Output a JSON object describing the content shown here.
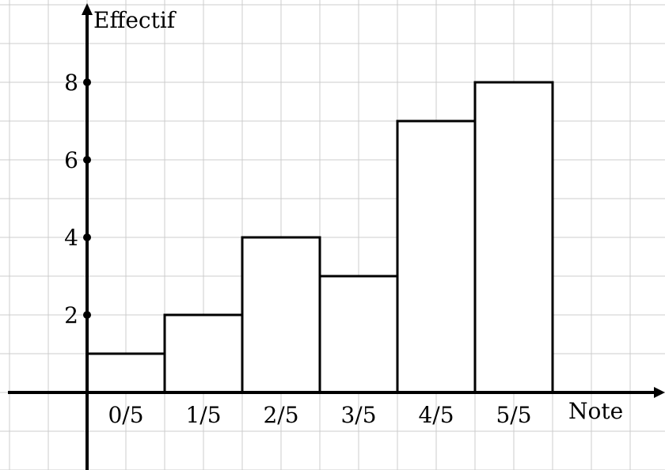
{
  "chart_data": {
    "type": "bar",
    "categories": [
      "0/5",
      "1/5",
      "2/5",
      "3/5",
      "4/5",
      "5/5"
    ],
    "values": [
      1,
      2,
      4,
      3,
      7,
      8
    ],
    "xlabel": "Note",
    "ylabel": "Effectif",
    "y_ticks": [
      "2",
      "4",
      "6",
      "8"
    ],
    "ylim": [
      -2,
      10
    ],
    "grid": true,
    "colors": {
      "bar_fill": "#ffffff",
      "bar_stroke": "#000000",
      "grid": "#cccccc",
      "axis": "#000000"
    }
  }
}
